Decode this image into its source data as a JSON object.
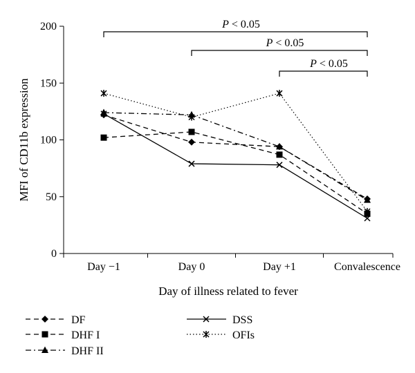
{
  "chart_data": {
    "type": "line",
    "categories": [
      "Day −1",
      "Day 0",
      "Day +1",
      "Convalescence"
    ],
    "xlabel": "Day of illness related to fever",
    "ylabel": "MFI of CD11b expression",
    "ylim": [
      0,
      200
    ],
    "yticks": [
      0,
      50,
      100,
      150,
      200
    ],
    "grid": false,
    "legend_position": "bottom",
    "series": [
      {
        "name": "DF",
        "values": [
          122,
          98,
          94,
          48
        ],
        "dash": "dash",
        "marker": "diamond"
      },
      {
        "name": "DHF I",
        "values": [
          102,
          107,
          87,
          35
        ],
        "dash": "dash",
        "marker": "square"
      },
      {
        "name": "DHF II",
        "values": [
          124,
          122,
          94,
          47
        ],
        "dash": "dashdot",
        "marker": "triangle"
      },
      {
        "name": "DSS",
        "values": [
          123,
          79,
          78,
          31
        ],
        "dash": "solid",
        "marker": "x"
      },
      {
        "name": "OFIs",
        "values": [
          141,
          120,
          141,
          37
        ],
        "dash": "dot",
        "marker": "star"
      }
    ],
    "annotations": [
      {
        "text_p": "P",
        "text_rest": "< 0.05",
        "from": 0,
        "to": 3
      },
      {
        "text_p": "P",
        "text_rest": "< 0.05",
        "from": 1,
        "to": 3
      },
      {
        "text_p": "P",
        "text_rest": "< 0.05",
        "from": 2,
        "to": 3
      }
    ]
  }
}
